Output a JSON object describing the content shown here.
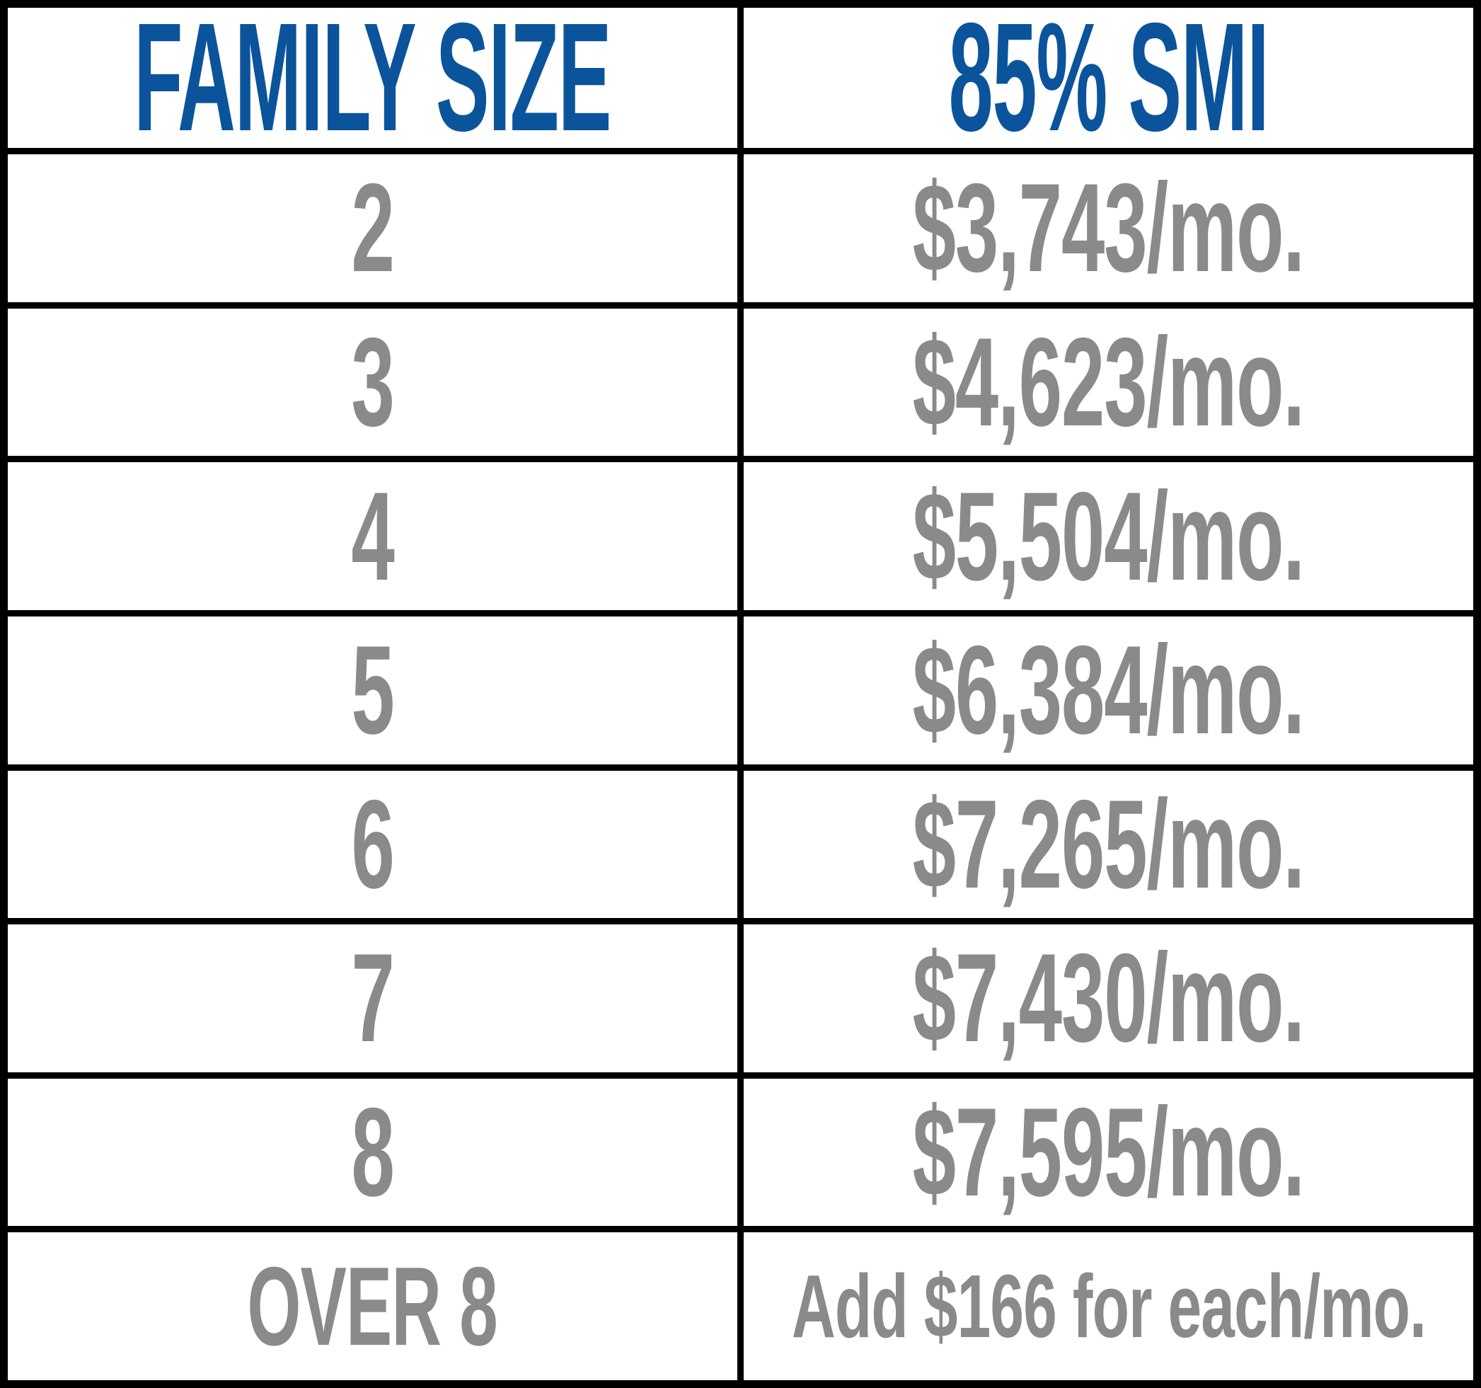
{
  "colors": {
    "header_text": "#0B549B",
    "body_text": "#8A8A8A",
    "grid_lines": "#000000",
    "background": "#FFFFFF"
  },
  "table": {
    "header": {
      "family_size": "FAMILY SIZE",
      "smi": "85% SMI"
    },
    "rows": [
      {
        "family_size": "2",
        "smi": "$3,743/mo."
      },
      {
        "family_size": "3",
        "smi": "$4,623/mo."
      },
      {
        "family_size": "4",
        "smi": "$5,504/mo."
      },
      {
        "family_size": "5",
        "smi": "$6,384/mo."
      },
      {
        "family_size": "6",
        "smi": "$7,265/mo."
      },
      {
        "family_size": "7",
        "smi": "$7,430/mo."
      },
      {
        "family_size": "8",
        "smi": "$7,595/mo."
      },
      {
        "family_size": "OVER 8",
        "smi": "Add $166 for each/mo."
      }
    ]
  },
  "chart_data": {
    "type": "table",
    "columns": [
      "FAMILY SIZE",
      "85% SMI"
    ],
    "rows": [
      [
        "2",
        "$3,743/mo."
      ],
      [
        "3",
        "$4,623/mo."
      ],
      [
        "4",
        "$5,504/mo."
      ],
      [
        "5",
        "$6,384/mo."
      ],
      [
        "6",
        "$7,265/mo."
      ],
      [
        "7",
        "$7,430/mo."
      ],
      [
        "8",
        "$7,595/mo."
      ],
      [
        "OVER 8",
        "Add $166 for each/mo."
      ]
    ],
    "family_sizes": [
      2,
      3,
      4,
      5,
      6,
      7,
      8
    ],
    "monthly_limit_usd": [
      3743,
      4623,
      5504,
      6384,
      7265,
      7430,
      7595
    ],
    "over_8_increment_per_person_usd_per_month": 166
  }
}
